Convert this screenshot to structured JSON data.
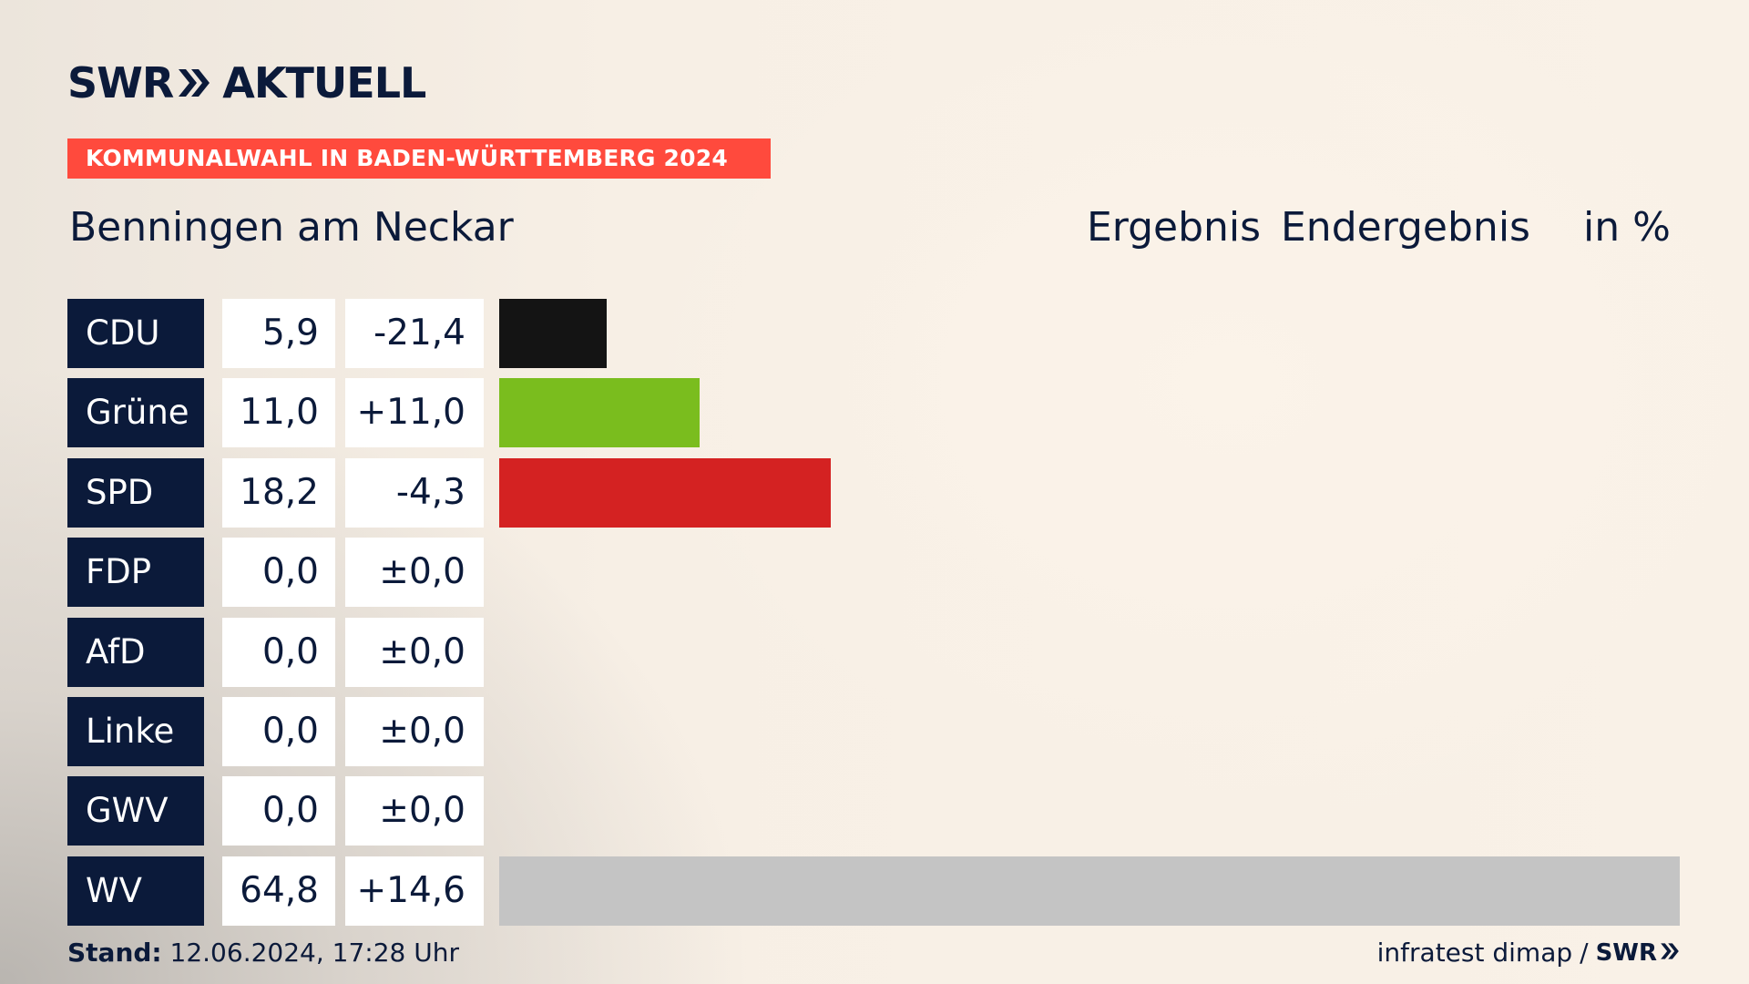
{
  "brand": {
    "logo_left": "SWR",
    "logo_right": "AKTUELL",
    "logo_icon": "double-chevron-icon"
  },
  "banner": "KOMMUNALWAHL IN BADEN-WÜRTTEMBERG 2024",
  "place": "Benningen am Neckar",
  "header": {
    "result": "Ergebnis",
    "final": "Endergebnis",
    "unit": "in %"
  },
  "footer": {
    "stand_label": "Stand:",
    "stand_value": "12.06.2024, 17:28 Uhr",
    "source": "infratest dimap",
    "separator": "/",
    "source_brand": "SWR"
  },
  "colors": {
    "navy": "#0b1a3a",
    "banner": "#ff4a3d"
  },
  "chart_data": {
    "type": "bar",
    "title": "Kommunalwahl in Baden-Württemberg 2024 – Benningen am Neckar",
    "unit": "%",
    "categories": [
      "CDU",
      "Grüne",
      "SPD",
      "FDP",
      "AfD",
      "Linke",
      "GWV",
      "WV"
    ],
    "values": [
      5.9,
      11.0,
      18.2,
      0.0,
      0.0,
      0.0,
      0.0,
      64.8
    ],
    "values_label": [
      "5,9",
      "11,0",
      "18,2",
      "0,0",
      "0,0",
      "0,0",
      "0,0",
      "64,8"
    ],
    "changes": [
      -21.4,
      11.0,
      -4.3,
      0.0,
      0.0,
      0.0,
      0.0,
      14.6
    ],
    "changes_label": [
      "-21,4",
      "+11,0",
      "-4,3",
      "±0,0",
      "±0,0",
      "±0,0",
      "±0,0",
      "+14,6"
    ],
    "bar_colors": [
      "#141414",
      "#7abd1e",
      "#d42222",
      "#f3e300",
      "#1e9fe0",
      "#be3075",
      "#9a9a9a",
      "#c4c4c4"
    ],
    "xlim": [
      0,
      64.8
    ],
    "orientation": "horizontal"
  }
}
